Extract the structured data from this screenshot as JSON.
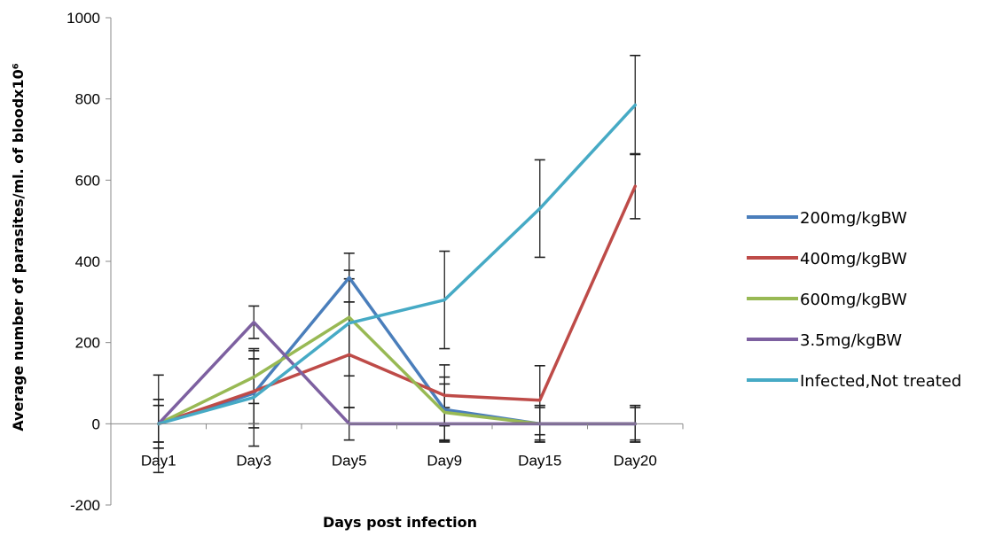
{
  "chart_data": {
    "type": "line",
    "title": "",
    "xlabel": "Days post infection",
    "ylabel": "Average number of parasites/ml. of bloodx10⁶",
    "categories": [
      "Day1",
      "Day3",
      "Day5",
      "Day9",
      "Day15",
      "Day20"
    ],
    "ylim": [
      -200,
      1000
    ],
    "yticks": [
      -200,
      0,
      200,
      400,
      600,
      800,
      1000
    ],
    "grid": false,
    "legend_position": "right",
    "series": [
      {
        "name": "200mg/kgBW",
        "color": "#4a7ebb",
        "values": [
          0,
          75,
          360,
          35,
          0,
          0
        ],
        "errors": [
          45,
          85,
          60,
          80,
          45,
          45
        ]
      },
      {
        "name": "400mg/kgBW",
        "color": "#be4b48",
        "values": [
          0,
          80,
          170,
          70,
          58,
          585
        ],
        "errors": [
          45,
          80,
          130,
          75,
          85,
          80
        ]
      },
      {
        "name": "600mg/kgBW",
        "color": "#98b954",
        "values": [
          0,
          115,
          262,
          28,
          0,
          0
        ],
        "errors": [
          60,
          65,
          95,
          70,
          45,
          45
        ]
      },
      {
        "name": "3.5mg/kgBW",
        "color": "#7d60a0",
        "values": [
          0,
          250,
          0,
          0,
          0,
          0
        ],
        "errors": [
          120,
          40,
          40,
          40,
          40,
          40
        ]
      },
      {
        "name": "Infected,Not treated",
        "color": "#46aac5",
        "values": [
          0,
          65,
          248,
          305,
          530,
          785
        ],
        "errors": [
          60,
          120,
          130,
          120,
          120,
          122
        ]
      }
    ]
  }
}
